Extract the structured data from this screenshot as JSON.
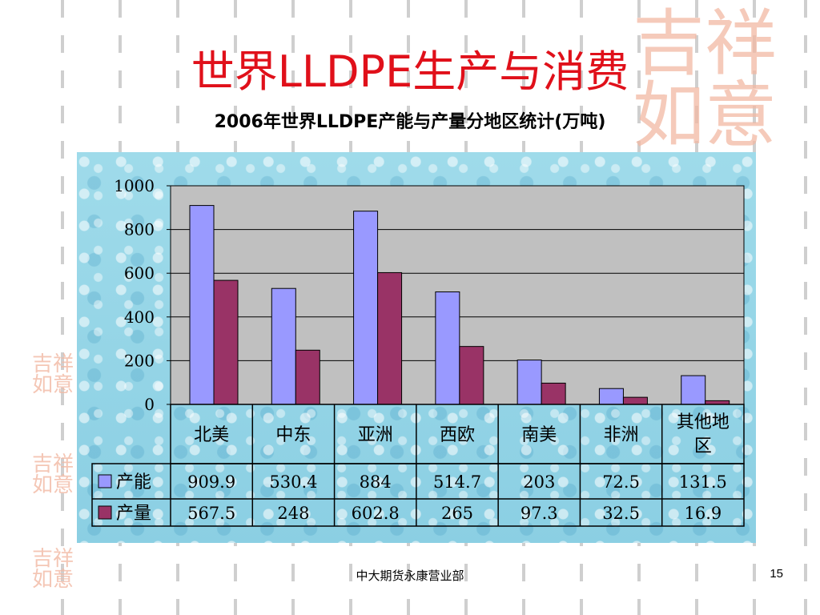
{
  "slide": {
    "title": "世界LLDPE生产与消费",
    "footer": "中大期货永康营业部",
    "page_number": "15",
    "seal_text": "吉祥如意",
    "small_seal_text": "吉祥如意"
  },
  "colors": {
    "title": "#e0101a",
    "plot_bg": "#c0c0c0",
    "series_capacity": "#9999ff",
    "series_output": "#993366",
    "panel_bg": "#9fdbea"
  },
  "chart_data": {
    "type": "bar",
    "title": "2006年世界LLDPE产能与产量分地区统计(万吨)",
    "categories": [
      "北美",
      "中东",
      "亚洲",
      "西欧",
      "南美",
      "非洲",
      "其他地区"
    ],
    "series": [
      {
        "name": "产能",
        "values": [
          909.9,
          530.4,
          884,
          514.7,
          203,
          72.5,
          131.5
        ],
        "labels": [
          "909.9",
          "530.4",
          "884",
          "514.7",
          "203",
          "72.5",
          "131.5"
        ]
      },
      {
        "name": "产量",
        "values": [
          567.5,
          248,
          602.8,
          265,
          97.3,
          32.5,
          16.9
        ],
        "labels": [
          "567.5",
          "248",
          "602.8",
          "265",
          "97.3",
          "32.5",
          "16.9"
        ]
      }
    ],
    "ylim": [
      0,
      1000
    ],
    "yticks": [
      0,
      200,
      400,
      600,
      800,
      1000
    ],
    "grid": true,
    "legend": "data-table"
  }
}
